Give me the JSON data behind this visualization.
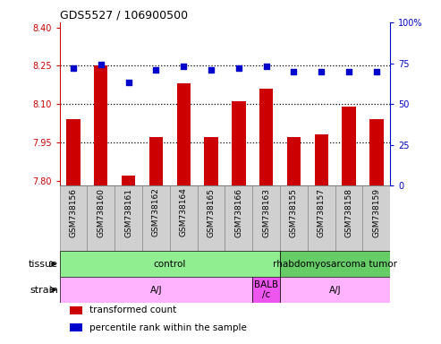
{
  "title": "GDS5527 / 106900500",
  "samples": [
    "GSM738156",
    "GSM738160",
    "GSM738161",
    "GSM738162",
    "GSM738164",
    "GSM738165",
    "GSM738166",
    "GSM738163",
    "GSM738155",
    "GSM738157",
    "GSM738158",
    "GSM738159"
  ],
  "bar_values": [
    8.04,
    8.25,
    7.82,
    7.97,
    8.18,
    7.97,
    8.11,
    8.16,
    7.97,
    7.98,
    8.09,
    8.04
  ],
  "dot_values": [
    72,
    74,
    63,
    71,
    73,
    71,
    72,
    73,
    70,
    70,
    70,
    70
  ],
  "ylim_left": [
    7.78,
    8.42
  ],
  "ylim_right": [
    0,
    100
  ],
  "yticks_left": [
    7.8,
    7.95,
    8.1,
    8.25,
    8.4
  ],
  "yticks_right": [
    0,
    25,
    50,
    75,
    100
  ],
  "hlines": [
    7.95,
    8.1,
    8.25
  ],
  "bar_color": "#cc0000",
  "dot_color": "#0000cc",
  "bar_bottom": 7.78,
  "tissue_labels": [
    {
      "text": "control",
      "start": 0,
      "end": 7,
      "color": "#90ee90"
    },
    {
      "text": "rhabdomyosarcoma tumor",
      "start": 8,
      "end": 11,
      "color": "#66cc66"
    }
  ],
  "strain_labels": [
    {
      "text": "A/J",
      "start": 0,
      "end": 6,
      "color": "#ffb3ff"
    },
    {
      "text": "BALB\n/c",
      "start": 7,
      "end": 7,
      "color": "#ee55ee"
    },
    {
      "text": "A/J",
      "start": 8,
      "end": 11,
      "color": "#ffb3ff"
    }
  ],
  "legend_items": [
    {
      "color": "#cc0000",
      "label": "transformed count"
    },
    {
      "color": "#0000cc",
      "label": "percentile rank within the sample"
    }
  ],
  "xtick_bg": "#d0d0d0",
  "xtick_border": "#888888"
}
